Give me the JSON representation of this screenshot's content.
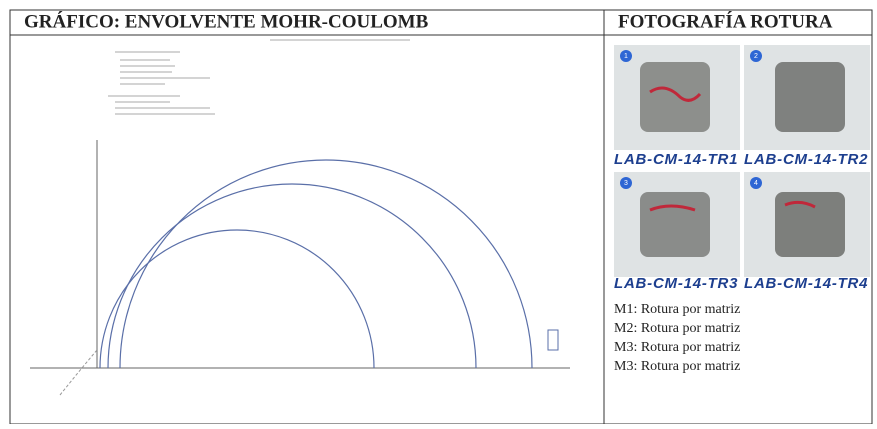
{
  "header": {
    "left_title": "GRÁFICO: ENVOLVENTE MOHR-COULOMB",
    "right_title": "FOTOGRAFÍA ROTURA"
  },
  "photos": [
    {
      "number": "1",
      "label": "LAB-CM-14-TR1"
    },
    {
      "number": "2",
      "label": "LAB-CM-14-TR2"
    },
    {
      "number": "3",
      "label": "LAB-CM-14-TR3"
    },
    {
      "number": "4",
      "label": "LAB-CM-14-TR4"
    }
  ],
  "captions": [
    "M1: Rotura por matriz",
    "M2: Rotura por matriz",
    "M3: Rotura por matriz",
    "M3: Rotura por matriz"
  ]
}
